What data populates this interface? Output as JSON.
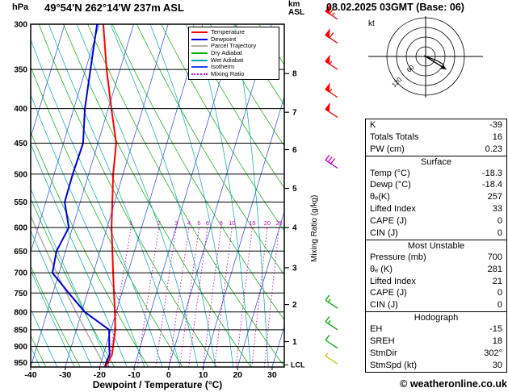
{
  "header": {
    "station": "49°54'N 262°14'W 237m ASL",
    "datetime": "08.02.2025 03GMT (Base: 06)",
    "left_unit": "hPa",
    "right_unit_line1": "km",
    "right_unit_line2": "ASL"
  },
  "chart_data": {
    "type": "skewt",
    "xlabel": "Dewpoint / Temperature (°C)",
    "ylabel_right": "Mixing Ratio (g/kg)",
    "x_ticks": [
      -40,
      -30,
      -20,
      -10,
      0,
      10,
      20,
      30
    ],
    "pressure_ticks": [
      300,
      350,
      400,
      450,
      500,
      550,
      600,
      650,
      700,
      750,
      800,
      850,
      900,
      950
    ],
    "p_top": 300,
    "p_bottom": 965,
    "km_ticks": [
      {
        "km": 1,
        "p": 885
      },
      {
        "km": 2,
        "p": 780
      },
      {
        "km": 3,
        "p": 688
      },
      {
        "km": 4,
        "p": 600
      },
      {
        "km": 5,
        "p": 525
      },
      {
        "km": 6,
        "p": 460
      },
      {
        "km": 7,
        "p": 405
      },
      {
        "km": 8,
        "p": 355
      }
    ],
    "lcl": {
      "label": "LCL",
      "p": 958
    },
    "mixing_ratio_lines": [
      1,
      2,
      3,
      4,
      5,
      6,
      8,
      10,
      15,
      20,
      25
    ],
    "temperature_profile": [
      [
        965,
        -18.3
      ],
      [
        950,
        -18.0
      ],
      [
        925,
        -17.5
      ],
      [
        900,
        -17.9
      ],
      [
        850,
        -18.7
      ],
      [
        800,
        -20.4
      ],
      [
        750,
        -22.3
      ],
      [
        700,
        -24.3
      ],
      [
        650,
        -26.4
      ],
      [
        600,
        -28.7
      ],
      [
        550,
        -30.7
      ],
      [
        500,
        -32.9
      ],
      [
        450,
        -34.7
      ],
      [
        400,
        -39.1
      ],
      [
        350,
        -43.9
      ],
      [
        300,
        -48.8
      ]
    ],
    "dewpoint_profile": [
      [
        965,
        -18.4
      ],
      [
        950,
        -18.5
      ],
      [
        925,
        -18.2
      ],
      [
        900,
        -19.0
      ],
      [
        850,
        -20.5
      ],
      [
        800,
        -29.1
      ],
      [
        750,
        -35.4
      ],
      [
        700,
        -41.9
      ],
      [
        650,
        -42.6
      ],
      [
        600,
        -41.1
      ],
      [
        550,
        -44.5
      ],
      [
        500,
        -44.6
      ],
      [
        450,
        -44.3
      ],
      [
        400,
        -46.8
      ],
      [
        350,
        -48.6
      ],
      [
        300,
        -50.6
      ]
    ],
    "parcel_theta_k": 257.4,
    "wind_barbs": [
      {
        "p": 295,
        "speed": 65,
        "color": "#ff0000"
      },
      {
        "p": 320,
        "speed": 60,
        "color": "#ff0000"
      },
      {
        "p": 350,
        "speed": 55,
        "color": "#ff0000"
      },
      {
        "p": 385,
        "speed": 55,
        "color": "#ff0000"
      },
      {
        "p": 412,
        "speed": 50,
        "color": "#ff0000"
      },
      {
        "p": 490,
        "speed": 30,
        "color": "#cc00cc"
      },
      {
        "p": 790,
        "speed": 15,
        "color": "#00aa00"
      },
      {
        "p": 850,
        "speed": 15,
        "color": "#00aa00"
      },
      {
        "p": 905,
        "speed": 10,
        "color": "#00aa00"
      },
      {
        "p": 955,
        "speed": 5,
        "color": "#cccc00"
      }
    ],
    "colors": {
      "temperature": "#ff0000",
      "dewpoint": "#0000dd",
      "parcel": "#b0b0b0",
      "dry_adiabat": "#00aa00",
      "wet_adiabat": "#00aaaa",
      "isotherm": "#2244ee",
      "mixing_ratio": "#cc00cc",
      "grid": "#000000"
    },
    "legend": [
      {
        "label": "Temperature",
        "color": "#ff0000",
        "style": "solid"
      },
      {
        "label": "Dewpoint",
        "color": "#0000dd",
        "style": "solid"
      },
      {
        "label": "Parcel Trajectory",
        "color": "#b0b0b0",
        "style": "solid"
      },
      {
        "label": "Dry Adiabat",
        "color": "#00aa00",
        "style": "solid"
      },
      {
        "label": "Wet Adiabat",
        "color": "#00aaaa",
        "style": "solid"
      },
      {
        "label": "Isotherm",
        "color": "#2244ee",
        "style": "solid"
      },
      {
        "label": "Mixing Ratio",
        "color": "#cc00cc",
        "style": "dotted"
      }
    ]
  },
  "hodograph": {
    "unit": "kt",
    "rings_kt": [
      30,
      60,
      90,
      120
    ],
    "ring_labels": [
      {
        "text": "60",
        "r": 24
      },
      {
        "text": "120",
        "r": 48
      }
    ],
    "storm_dir_deg": 302,
    "storm_speed_kt": 30
  },
  "stats": {
    "sections": [
      {
        "title": null,
        "rows": [
          [
            "K",
            "-39"
          ],
          [
            "Totals Totals",
            "16"
          ],
          [
            "PW (cm)",
            "0.23"
          ]
        ]
      },
      {
        "title": "Surface",
        "rows": [
          [
            "Temp (°C)",
            "-18.3"
          ],
          [
            "Dewp (°C)",
            "-18.4"
          ],
          [
            "θₑ(K)",
            "257"
          ],
          [
            "Lifted Index",
            "33"
          ],
          [
            "CAPE (J)",
            "0"
          ],
          [
            "CIN (J)",
            "0"
          ]
        ]
      },
      {
        "title": "Most Unstable",
        "rows": [
          [
            "Pressure (mb)",
            "700"
          ],
          [
            "θₑ (K)",
            "281"
          ],
          [
            "Lifted Index",
            "21"
          ],
          [
            "CAPE (J)",
            "0"
          ],
          [
            "CIN (J)",
            "0"
          ]
        ]
      },
      {
        "title": "Hodograph",
        "rows": [
          [
            "EH",
            "-15"
          ],
          [
            "SREH",
            "18"
          ],
          [
            "StmDir",
            "302°"
          ],
          [
            "StmSpd (kt)",
            "30"
          ]
        ]
      }
    ]
  },
  "footer": {
    "copyright": "© weatheronline.co.uk"
  }
}
